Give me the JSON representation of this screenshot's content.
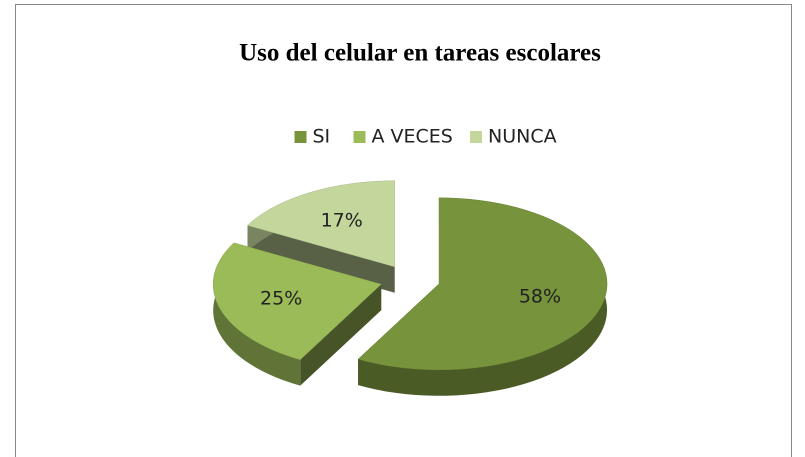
{
  "chart_data": {
    "type": "pie",
    "title": "Uso del celular en tareas escolares",
    "categories": [
      "SI",
      "A VECES",
      "NUNCA"
    ],
    "values": [
      58,
      25,
      17
    ],
    "value_labels": [
      "58%",
      "25%",
      "17%"
    ],
    "colors": [
      "#77933c",
      "#9bbb59",
      "#c3d69b"
    ],
    "legend": "top"
  }
}
